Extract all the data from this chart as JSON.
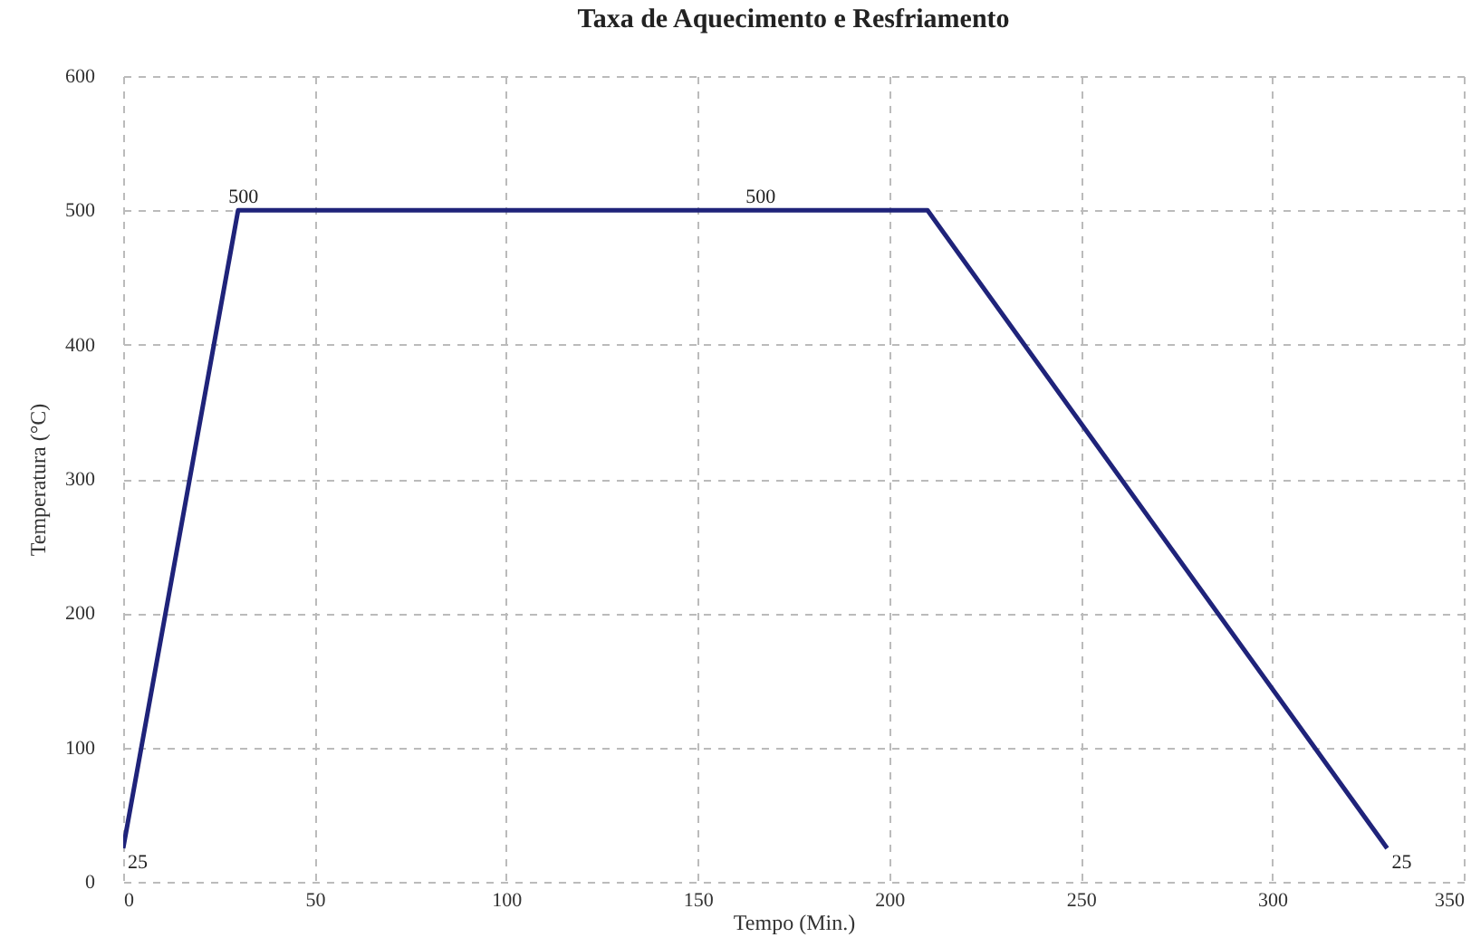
{
  "chart_data": {
    "type": "line",
    "title": "Taxa de Aquecimento e Resfriamento",
    "xlabel": "Tempo (Min.)",
    "ylabel": "Temperatura (°C)",
    "x": [
      0,
      30,
      165,
      210,
      330
    ],
    "series": [
      {
        "color": "#1f237a",
        "values": [
          25,
          500,
          500,
          500,
          25
        ],
        "value_labels": [
          "25",
          "500",
          "500",
          null,
          "25"
        ]
      }
    ],
    "xlim": [
      0,
      350
    ],
    "xticks": [
      0,
      50,
      100,
      150,
      200,
      250,
      300,
      350
    ],
    "ylim": [
      0,
      600
    ],
    "yticks": [
      0,
      100,
      200,
      300,
      400,
      500,
      600
    ],
    "grid": true,
    "line_style": "solid",
    "marker": "none"
  }
}
